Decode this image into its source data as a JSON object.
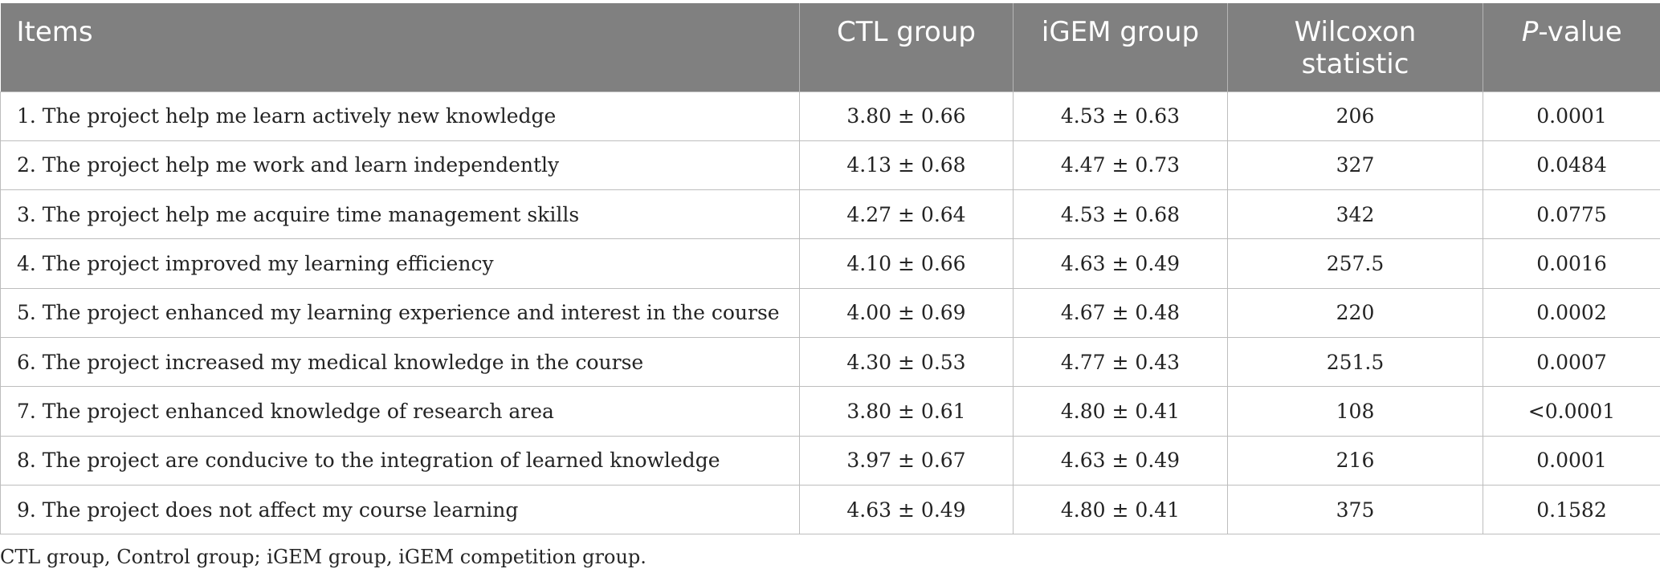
{
  "table": {
    "headers": {
      "items": "Items",
      "ctl": "CTL group",
      "igem": "iGEM group",
      "wilcoxon_line1": "Wilcoxon",
      "wilcoxon_line2": "statistic",
      "p_italic": "P",
      "p_rest": "-value"
    },
    "rows": [
      {
        "item": "1. The project help me learn actively new knowledge",
        "ctl": "3.80 ± 0.66",
        "igem": "4.53 ± 0.63",
        "wilcoxon": "206",
        "p": "0.0001"
      },
      {
        "item": "2. The project help me work and learn independently",
        "ctl": "4.13 ± 0.68",
        "igem": "4.47 ± 0.73",
        "wilcoxon": "327",
        "p": "0.0484"
      },
      {
        "item": "3. The project help me acquire time management skills",
        "ctl": "4.27 ± 0.64",
        "igem": "4.53 ± 0.68",
        "wilcoxon": "342",
        "p": "0.0775"
      },
      {
        "item": "4. The project improved my learning efficiency",
        "ctl": "4.10 ± 0.66",
        "igem": "4.63 ± 0.49",
        "wilcoxon": "257.5",
        "p": "0.0016"
      },
      {
        "item": "5. The project enhanced my learning experience and interest in the course",
        "ctl": "4.00 ± 0.69",
        "igem": "4.67 ± 0.48",
        "wilcoxon": "220",
        "p": "0.0002"
      },
      {
        "item": "6. The project increased my medical knowledge in the course",
        "ctl": "4.30 ± 0.53",
        "igem": "4.77 ± 0.43",
        "wilcoxon": "251.5",
        "p": "0.0007"
      },
      {
        "item": "7. The project enhanced knowledge of research area",
        "ctl": "3.80 ± 0.61",
        "igem": "4.80 ± 0.41",
        "wilcoxon": "108",
        "p": "<0.0001"
      },
      {
        "item": "8. The project are conducive to the integration of learned knowledge",
        "ctl": "3.97 ± 0.67",
        "igem": "4.63 ± 0.49",
        "wilcoxon": "216",
        "p": "0.0001"
      },
      {
        "item": "9. The project does not affect my course learning",
        "ctl": "4.63 ± 0.49",
        "igem": "4.80 ± 0.41",
        "wilcoxon": "375",
        "p": "0.1582"
      }
    ]
  },
  "footnote": "CTL group, Control group; iGEM group, iGEM competition group.",
  "colors": {
    "header_background": "#808080",
    "header_text": "#ffffff",
    "grid_line": "#bdbdbd"
  }
}
